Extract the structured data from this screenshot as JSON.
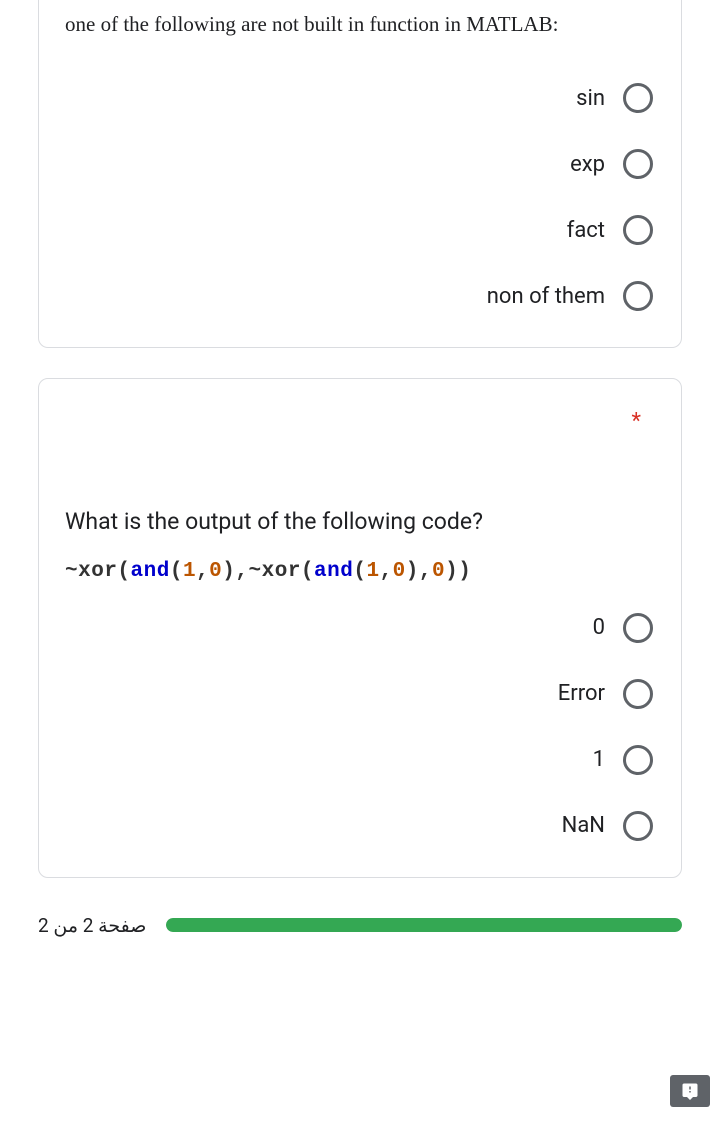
{
  "question1": {
    "title": "one of the following are not built in function in MATLAB:",
    "options": [
      "sin",
      "exp",
      "fact",
      "non of them"
    ]
  },
  "question2": {
    "required_mark": "*",
    "title": "What is the output of the following code?",
    "code_tokens": [
      {
        "t": "~",
        "c": "op"
      },
      {
        "t": "xor",
        "c": "op"
      },
      {
        "t": "(",
        "c": "op"
      },
      {
        "t": "and",
        "c": "kw"
      },
      {
        "t": "(",
        "c": "op"
      },
      {
        "t": "1",
        "c": "num"
      },
      {
        "t": ",",
        "c": "op"
      },
      {
        "t": "0",
        "c": "num"
      },
      {
        "t": ")",
        "c": "op"
      },
      {
        "t": ",",
        "c": "op"
      },
      {
        "t": "~",
        "c": "op"
      },
      {
        "t": "xor",
        "c": "op"
      },
      {
        "t": "(",
        "c": "op"
      },
      {
        "t": "and",
        "c": "kw"
      },
      {
        "t": "(",
        "c": "op"
      },
      {
        "t": "1",
        "c": "num"
      },
      {
        "t": ",",
        "c": "op"
      },
      {
        "t": "0",
        "c": "num"
      },
      {
        "t": ")",
        "c": "op"
      },
      {
        "t": ",",
        "c": "op"
      },
      {
        "t": "0",
        "c": "num"
      },
      {
        "t": ")",
        "c": "op"
      },
      {
        "t": ")",
        "c": "op"
      }
    ],
    "options": [
      "0",
      "Error",
      "1",
      "NaN"
    ]
  },
  "footer": {
    "page_text": "صفحة 2 من 2",
    "progress_percent": 100
  },
  "colors": {
    "border": "#dadce0",
    "text": "#202124",
    "radio_border": "#5f6368",
    "required": "#d93025",
    "progress_fill": "#34a853",
    "progress_track": "#e0e0e0",
    "code_op": "#333333",
    "code_kw": "#0000cc",
    "code_num": "#bb5500",
    "report_bg": "#5f6368"
  }
}
